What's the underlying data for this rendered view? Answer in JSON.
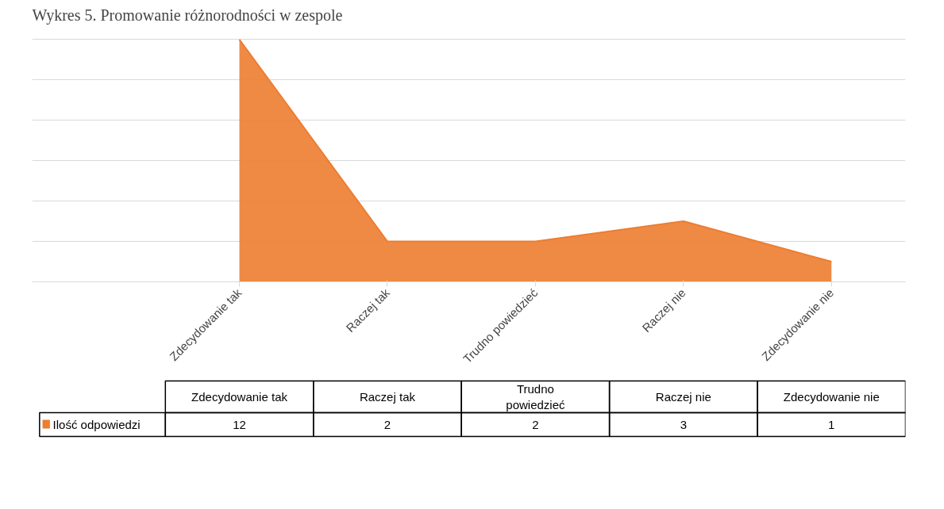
{
  "chart_data": {
    "type": "area",
    "title": "Wykres 5. Promowanie różnorodności w zespole",
    "categories": [
      "Zdecydowanie tak",
      "Raczej tak",
      "Trudno powiedzieć",
      "Raczej nie",
      "Zdecydowanie nie"
    ],
    "series": [
      {
        "name": "Ilość odpowiedzi",
        "color": "#ed7d31",
        "values": [
          12,
          2,
          2,
          3,
          1
        ]
      }
    ],
    "data_labels": true,
    "grid": "y",
    "tick_labels": "x",
    "legend": "bottom"
  }
}
